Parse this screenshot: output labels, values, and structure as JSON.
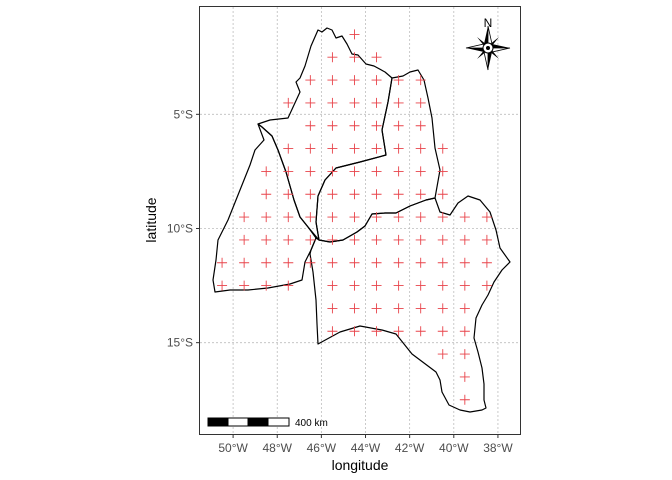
{
  "map": {
    "xlabel": "longitude",
    "ylabel": "latitude",
    "x_ticks": [
      "50°W",
      "48°W",
      "46°W",
      "44°W",
      "42°W",
      "40°W",
      "38°W"
    ],
    "x_tick_values": [
      -50,
      -48,
      -46,
      -44,
      -42,
      -40,
      -38
    ],
    "y_ticks": [
      "5°S",
      "10°S",
      "15°S"
    ],
    "y_tick_values": [
      -5,
      -10,
      -15
    ],
    "lon_range": [
      -51.5,
      -37.0
    ],
    "lat_range": [
      -19.0,
      -0.3
    ],
    "grid": true,
    "north_arrow_label": "N",
    "scale_bar_label": "400 km",
    "colors": {
      "points": "#e8434a",
      "outline": "#000000",
      "grid": "#bdbdbd",
      "panel_border": "#333333"
    }
  },
  "chart_data": {
    "type": "scatter",
    "title": "",
    "xlabel": "longitude",
    "ylabel": "latitude",
    "xlim": [
      -51.5,
      -37.0
    ],
    "ylim": [
      -19.0,
      -0.3
    ],
    "grid": true,
    "marker": "plus",
    "points_by_latitude": [
      {
        "lat": -1.5,
        "lons": [
          -44.5
        ]
      },
      {
        "lat": -2.5,
        "lons": [
          -45.5,
          -44.5,
          -43.5
        ]
      },
      {
        "lat": -3.5,
        "lons": [
          -46.5,
          -45.5,
          -44.5,
          -43.5,
          -42.5,
          -41.5
        ]
      },
      {
        "lat": -4.5,
        "lons": [
          -47.5,
          -46.5,
          -45.5,
          -44.5,
          -43.5,
          -42.5,
          -41.5
        ]
      },
      {
        "lat": -5.5,
        "lons": [
          -46.5,
          -45.5,
          -44.5,
          -43.5,
          -42.5,
          -41.5
        ]
      },
      {
        "lat": -6.5,
        "lons": [
          -47.5,
          -46.5,
          -45.5,
          -44.5,
          -43.5,
          -42.5,
          -41.5,
          -40.5
        ]
      },
      {
        "lat": -7.5,
        "lons": [
          -48.5,
          -47.5,
          -46.5,
          -45.5,
          -44.5,
          -43.5,
          -42.5,
          -41.5,
          -40.5
        ]
      },
      {
        "lat": -8.5,
        "lons": [
          -48.5,
          -47.5,
          -46.5,
          -45.5,
          -44.5,
          -43.5,
          -42.5,
          -41.5,
          -40.5
        ]
      },
      {
        "lat": -9.5,
        "lons": [
          -49.5,
          -48.5,
          -47.5,
          -46.5,
          -45.5,
          -44.5,
          -43.5,
          -42.5,
          -41.5,
          -40.5,
          -39.5,
          -38.5
        ]
      },
      {
        "lat": -10.5,
        "lons": [
          -49.5,
          -48.5,
          -47.5,
          -46.5,
          -45.5,
          -44.5,
          -43.5,
          -42.5,
          -41.5,
          -40.5,
          -39.5,
          -38.5
        ]
      },
      {
        "lat": -11.5,
        "lons": [
          -50.5,
          -49.5,
          -48.5,
          -47.5,
          -46.5,
          -45.5,
          -44.5,
          -43.5,
          -42.5,
          -41.5,
          -40.5,
          -39.5,
          -38.5
        ]
      },
      {
        "lat": -12.5,
        "lons": [
          -50.5,
          -49.5,
          -48.5,
          -47.5,
          -45.5,
          -44.5,
          -43.5,
          -42.5,
          -41.5,
          -40.5,
          -39.5,
          -38.5
        ]
      },
      {
        "lat": -13.5,
        "lons": [
          -45.5,
          -44.5,
          -43.5,
          -42.5,
          -41.5,
          -40.5,
          -39.5
        ]
      },
      {
        "lat": -14.5,
        "lons": [
          -45.5,
          -44.5,
          -43.5,
          -42.5,
          -41.5,
          -40.5,
          -39.5
        ]
      },
      {
        "lat": -15.5,
        "lons": [
          -40.5,
          -39.5
        ]
      },
      {
        "lat": -16.5,
        "lons": [
          -39.5
        ]
      },
      {
        "lat": -17.5,
        "lons": [
          -39.5
        ]
      }
    ]
  }
}
